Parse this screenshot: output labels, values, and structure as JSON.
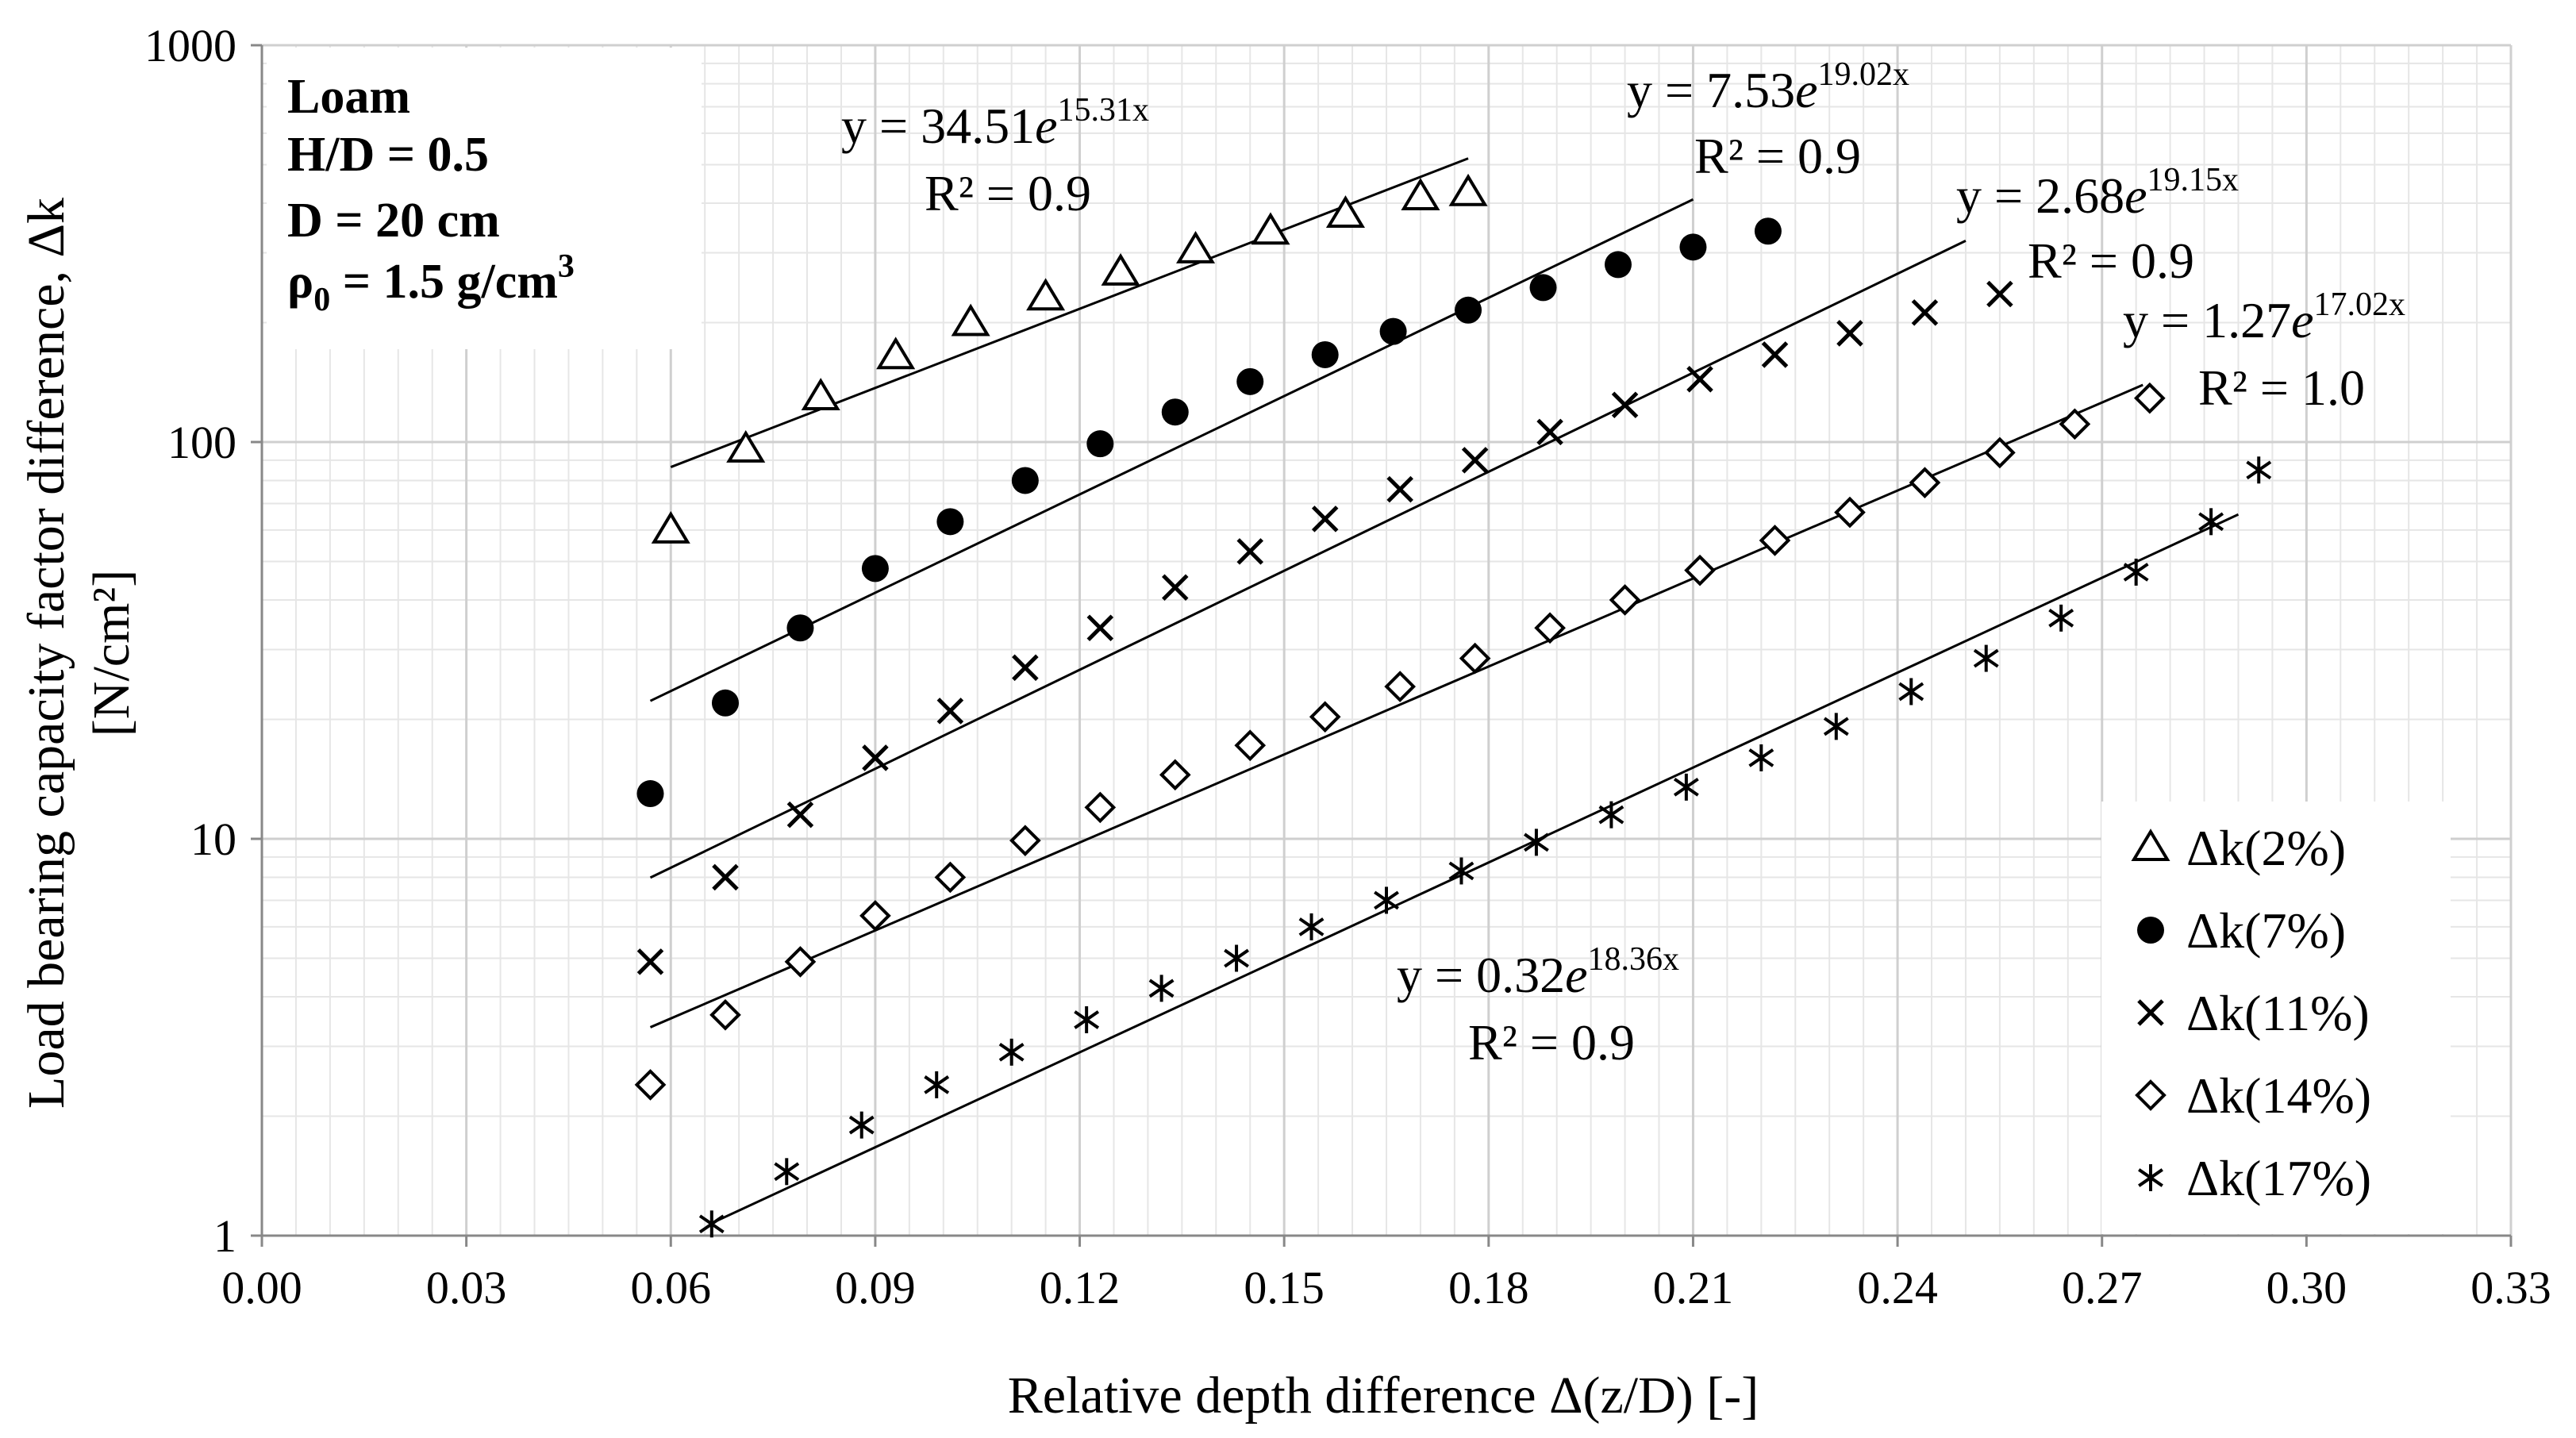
{
  "chart_data": {
    "type": "scatter",
    "xlabel": "Relative depth difference Δ(z/D) [-]",
    "ylabel_line1": "Load bearing capacity factor difference, Δk",
    "ylabel_line2": "[N/cm²]",
    "xlim": [
      0,
      0.33
    ],
    "ylim": [
      1,
      1000
    ],
    "y_scale": "log",
    "grid": true,
    "x_ticks": [
      "0.00",
      "0.03",
      "0.06",
      "0.09",
      "0.12",
      "0.15",
      "0.18",
      "0.21",
      "0.24",
      "0.27",
      "0.30",
      "0.33"
    ],
    "y_ticks": [
      "1",
      "10",
      "100",
      "1000"
    ],
    "info_box": {
      "line1": "Loam",
      "line2": "H/D = 0.5",
      "line3": "D = 20 cm",
      "line4_prefix": "ρ",
      "line4_sub": "0",
      "line4_rest": " = 1.5 g/cm",
      "line4_sup": "3"
    },
    "legend_position": "bottom-right",
    "series": [
      {
        "name": "Δk(2%)",
        "marker": "triangle",
        "x": [
          0.06,
          0.071,
          0.082,
          0.093,
          0.104,
          0.115,
          0.126,
          0.137,
          0.148,
          0.159,
          0.17,
          0.177
        ],
        "y": [
          60,
          96,
          130,
          165,
          200,
          232,
          268,
          305,
          340,
          375,
          415,
          425
        ],
        "trend": {
          "a": 34.51,
          "b": 15.31,
          "x_range": [
            0.06,
            0.177
          ]
        },
        "equation": {
          "prefix": "y = 34.51",
          "e": "e",
          "exp": "15.31x",
          "r2": "R² = 0.9"
        }
      },
      {
        "name": "Δk(7%)",
        "marker": "circle",
        "x": [
          0.057,
          0.068,
          0.079,
          0.09,
          0.101,
          0.112,
          0.123,
          0.134,
          0.145,
          0.156,
          0.166,
          0.177,
          0.188,
          0.199,
          0.21,
          0.221
        ],
        "y": [
          13,
          22,
          34,
          48,
          63,
          80,
          99,
          119,
          142,
          166,
          190,
          215,
          245,
          280,
          310,
          340
        ],
        "trend": {
          "a": 7.53,
          "b": 19.02,
          "x_range": [
            0.057,
            0.21
          ]
        },
        "equation": {
          "prefix": "y = 7.53",
          "e": "e",
          "exp": "19.02x",
          "r2": "R² = 0.9"
        }
      },
      {
        "name": "Δk(11%)",
        "marker": "x",
        "x": [
          0.057,
          0.068,
          0.079,
          0.09,
          0.101,
          0.112,
          0.123,
          0.134,
          0.145,
          0.156,
          0.167,
          0.178,
          0.189,
          0.2,
          0.211,
          0.222,
          0.233,
          0.244,
          0.255
        ],
        "y": [
          4.9,
          8.0,
          11.5,
          16,
          21,
          27,
          34,
          43,
          53,
          64,
          76,
          90,
          106,
          124,
          144,
          166,
          188,
          212,
          236
        ],
        "trend": {
          "a": 2.68,
          "b": 19.15,
          "x_range": [
            0.057,
            0.25
          ]
        },
        "equation": {
          "prefix": "y = 2.68",
          "e": "e",
          "exp": "19.15x",
          "r2": "R² = 0.9"
        }
      },
      {
        "name": "Δk(14%)",
        "marker": "diamond",
        "x": [
          0.057,
          0.068,
          0.079,
          0.09,
          0.101,
          0.112,
          0.123,
          0.134,
          0.145,
          0.156,
          0.167,
          0.178,
          0.189,
          0.2,
          0.211,
          0.222,
          0.233,
          0.244,
          0.255,
          0.266,
          0.277
        ],
        "y": [
          2.4,
          3.6,
          4.9,
          6.4,
          8.0,
          9.9,
          12,
          14.5,
          17.2,
          20.3,
          24.2,
          28.5,
          34,
          40,
          47.5,
          56.5,
          66.5,
          79,
          94,
          111,
          129
        ],
        "trend": {
          "a": 1.27,
          "b": 17.02,
          "x_range": [
            0.057,
            0.276
          ]
        },
        "equation": {
          "prefix": "y = 1.27",
          "e": "e",
          "exp": "17.02x",
          "r2": "R² = 1.0"
        }
      },
      {
        "name": "Δk(17%)",
        "marker": "asterisk",
        "x": [
          0.066,
          0.077,
          0.088,
          0.099,
          0.11,
          0.121,
          0.132,
          0.143,
          0.154,
          0.165,
          0.176,
          0.187,
          0.198,
          0.209,
          0.22,
          0.231,
          0.242,
          0.253,
          0.264,
          0.275,
          0.286,
          0.293
        ],
        "y": [
          1.07,
          1.45,
          1.9,
          2.4,
          2.9,
          3.5,
          4.2,
          5.0,
          6.0,
          7.0,
          8.3,
          9.8,
          11.5,
          13.5,
          16,
          19.2,
          23.5,
          28.5,
          36,
          47,
          63,
          85
        ],
        "trend": {
          "a": 0.32,
          "b": 18.36,
          "x_range": [
            0.066,
            0.29
          ]
        },
        "equation": {
          "prefix": "y = 0.32",
          "e": "e",
          "exp": "18.36x",
          "r2": "R² = 0.9"
        }
      }
    ]
  }
}
